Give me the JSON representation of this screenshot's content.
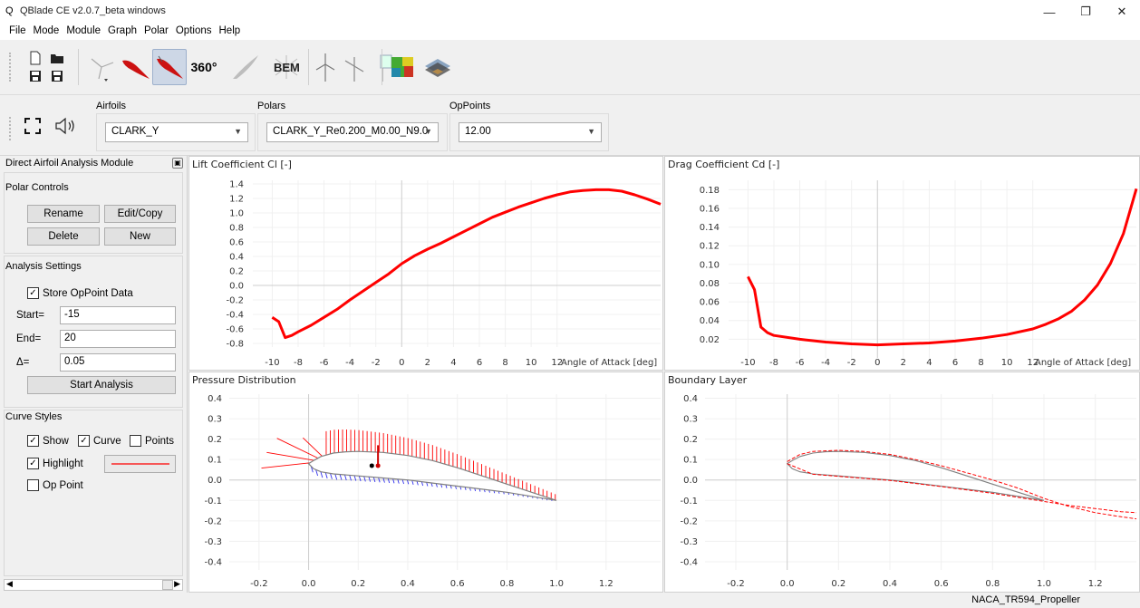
{
  "window": {
    "title": "QBlade CE v2.0.7_beta windows",
    "logo": "Q"
  },
  "menu": [
    "File",
    "Mode",
    "Module",
    "Graph",
    "Polar",
    "Options",
    "Help"
  ],
  "toolbar": {
    "label_360": "360°",
    "label_bem": "BEM"
  },
  "selectors": {
    "airfoils": {
      "label": "Airfoils",
      "value": "CLARK_Y"
    },
    "polars": {
      "label": "Polars",
      "value": "CLARK_Y_Re0.200_M0.00_N9.0"
    },
    "oppoints": {
      "label": "OpPoints",
      "value": "12.00"
    }
  },
  "panel": {
    "header": "Direct Airfoil Analysis Module",
    "polar_controls": {
      "title": "Polar Controls",
      "rename": "Rename",
      "editcopy": "Edit/Copy",
      "delete": "Delete",
      "new": "New"
    },
    "analysis": {
      "title": "Analysis Settings",
      "store": "Store OpPoint Data",
      "start_label": "Start=",
      "start_value": "-15",
      "end_label": "End=",
      "end_value": "20",
      "delta_label": "Δ=",
      "delta_value": "0.05",
      "start_button": "Start Analysis"
    },
    "curve_styles": {
      "title": "Curve Styles",
      "show": "Show",
      "curve": "Curve",
      "points": "Points",
      "highlight": "Highlight",
      "oppoint": "Op Point"
    }
  },
  "colors": {
    "curve_red": "#ff0000",
    "pressure_blue": "#3333ee",
    "airfoil_gray": "#808080"
  },
  "status": {
    "text": "NACA_TR594_Propeller"
  },
  "chart_data": [
    {
      "type": "line",
      "title": "Lift Coefficient Cl [-]",
      "xlabel": "Angle of Attack [deg]",
      "xticks": [
        -10,
        -8,
        -6,
        -4,
        -2,
        0,
        2,
        4,
        6,
        8,
        10,
        12
      ],
      "yticks": [
        -0.8,
        -0.6,
        -0.4,
        -0.2,
        0.0,
        0.2,
        0.4,
        0.6,
        0.8,
        1.0,
        1.2,
        1.4
      ],
      "xlim": [
        -11.5,
        20
      ],
      "ylim": [
        -0.85,
        1.45
      ],
      "grid": true,
      "series": [
        {
          "x": [
            -10,
            -9.5,
            -9,
            -8.5,
            -8,
            -7,
            -6,
            -5,
            -4,
            -3,
            -2,
            -1,
            0,
            1,
            2,
            3,
            4,
            5,
            6,
            7,
            8,
            9,
            10,
            11,
            12,
            13,
            14,
            15,
            16,
            17,
            18,
            19,
            20
          ],
          "y": [
            -0.44,
            -0.5,
            -0.72,
            -0.69,
            -0.64,
            -0.55,
            -0.44,
            -0.33,
            -0.2,
            -0.08,
            0.04,
            0.16,
            0.3,
            0.41,
            0.5,
            0.58,
            0.67,
            0.76,
            0.85,
            0.94,
            1.01,
            1.08,
            1.14,
            1.2,
            1.25,
            1.29,
            1.31,
            1.32,
            1.32,
            1.3,
            1.25,
            1.19,
            1.12
          ]
        }
      ]
    },
    {
      "type": "line",
      "title": "Drag Coefficient Cd [-]",
      "xlabel": "Angle of Attack [deg]",
      "xticks": [
        -10,
        -8,
        -6,
        -4,
        -2,
        0,
        2,
        4,
        6,
        8,
        10,
        12
      ],
      "yticks": [
        0.02,
        0.04,
        0.06,
        0.08,
        0.1,
        0.12,
        0.14,
        0.16,
        0.18
      ],
      "xlim": [
        -11.5,
        20
      ],
      "ylim": [
        0.0,
        0.19
      ],
      "grid": true,
      "series": [
        {
          "x": [
            -10,
            -9.5,
            -9,
            -8.5,
            -8,
            -6,
            -4,
            -2,
            0,
            2,
            4,
            6,
            8,
            10,
            12,
            13,
            14,
            15,
            16,
            17,
            18,
            19,
            20
          ],
          "y": [
            0.087,
            0.073,
            0.033,
            0.027,
            0.024,
            0.02,
            0.017,
            0.015,
            0.014,
            0.015,
            0.016,
            0.018,
            0.021,
            0.025,
            0.031,
            0.036,
            0.042,
            0.05,
            0.062,
            0.078,
            0.101,
            0.133,
            0.181
          ]
        }
      ]
    },
    {
      "type": "line",
      "title": "Pressure Distribution",
      "xticks": [
        -0.2,
        0.0,
        0.2,
        0.4,
        0.6,
        0.8,
        1.0,
        1.2
      ],
      "yticks": [
        -0.4,
        -0.3,
        -0.2,
        -0.1,
        0.0,
        0.1,
        0.2,
        0.3,
        0.4
      ],
      "xlim": [
        -0.32,
        1.42
      ],
      "ylim": [
        -0.44,
        0.42
      ],
      "grid": true,
      "upper": {
        "x": [
          1.0,
          0.9,
          0.8,
          0.7,
          0.6,
          0.5,
          0.4,
          0.3,
          0.2,
          0.15,
          0.1,
          0.05,
          0.02,
          0.0
        ],
        "y": [
          -0.1,
          -0.06,
          -0.02,
          0.02,
          0.06,
          0.095,
          0.12,
          0.135,
          0.14,
          0.138,
          0.132,
          0.115,
          0.095,
          0.08
        ]
      },
      "lower": {
        "x": [
          0.0,
          0.02,
          0.05,
          0.1,
          0.2,
          0.3,
          0.4,
          0.5,
          0.6,
          0.7,
          0.8,
          0.9,
          1.0
        ],
        "y": [
          0.08,
          0.055,
          0.04,
          0.03,
          0.02,
          0.01,
          0.0,
          -0.015,
          -0.03,
          -0.045,
          -0.06,
          -0.08,
          -0.1
        ]
      },
      "cp_upper_scale": 0.095,
      "cp_lower_scale": 0.05
    },
    {
      "type": "line",
      "title": "Boundary Layer",
      "xticks": [
        -0.2,
        0.0,
        0.2,
        0.4,
        0.6,
        0.8,
        1.0,
        1.2
      ],
      "yticks": [
        -0.4,
        -0.3,
        -0.2,
        -0.1,
        0.0,
        0.1,
        0.2,
        0.3,
        0.4
      ],
      "xlim": [
        -0.32,
        1.36
      ],
      "ylim": [
        -0.44,
        0.42
      ],
      "grid": true,
      "airfoil_upper": {
        "x": [
          1.0,
          0.9,
          0.8,
          0.7,
          0.6,
          0.5,
          0.4,
          0.3,
          0.2,
          0.15,
          0.1,
          0.05,
          0.02,
          0.0
        ],
        "y": [
          -0.1,
          -0.06,
          -0.02,
          0.02,
          0.06,
          0.095,
          0.12,
          0.135,
          0.14,
          0.138,
          0.132,
          0.115,
          0.095,
          0.08
        ]
      },
      "airfoil_lower": {
        "x": [
          0.0,
          0.02,
          0.05,
          0.1,
          0.2,
          0.3,
          0.4,
          0.5,
          0.6,
          0.7,
          0.8,
          0.9,
          1.0
        ],
        "y": [
          0.08,
          0.055,
          0.04,
          0.03,
          0.02,
          0.01,
          0.0,
          -0.015,
          -0.03,
          -0.045,
          -0.06,
          -0.08,
          -0.1
        ]
      },
      "bl_upper": {
        "x": [
          0.0,
          0.05,
          0.1,
          0.2,
          0.3,
          0.4,
          0.5,
          0.6,
          0.7,
          0.8,
          0.9,
          1.0,
          1.1,
          1.2,
          1.3,
          1.36
        ],
        "y": [
          0.09,
          0.125,
          0.14,
          0.145,
          0.14,
          0.125,
          0.1,
          0.07,
          0.035,
          0.0,
          -0.04,
          -0.09,
          -0.13,
          -0.16,
          -0.18,
          -0.19
        ]
      },
      "bl_lower": {
        "x": [
          0.0,
          0.1,
          0.2,
          0.4,
          0.6,
          0.8,
          1.0,
          1.1,
          1.2,
          1.3,
          1.36
        ],
        "y": [
          0.08,
          0.028,
          0.018,
          -0.002,
          -0.032,
          -0.065,
          -0.105,
          -0.125,
          -0.14,
          -0.155,
          -0.16
        ]
      }
    }
  ]
}
